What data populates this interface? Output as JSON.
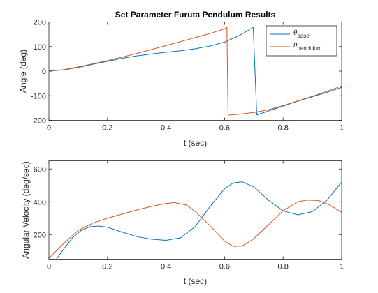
{
  "figure": {
    "background": "#ffffff"
  },
  "chart_data": [
    {
      "type": "line",
      "title": "Set Parameter Furuta Pendulum Results",
      "xlabel": "t (sec)",
      "ylabel": "Angle (deg)",
      "xlim": [
        0,
        1
      ],
      "ylim": [
        -200,
        200
      ],
      "xticks": [
        0,
        0.2,
        0.4,
        0.6,
        0.8,
        1
      ],
      "xtick_labels": [
        "0",
        "0.2",
        "0.4",
        "0.6",
        "0.8",
        "1"
      ],
      "yticks": [
        -200,
        -100,
        0,
        100,
        200
      ],
      "ytick_labels": [
        "-200",
        "-100",
        "0",
        "100",
        "200"
      ],
      "grid": false,
      "legend": {
        "placement": "top-right",
        "entries": [
          {
            "symbol": "θ",
            "subscript": "base",
            "color": "#0072BD"
          },
          {
            "symbol": "θ",
            "subscript": "pendulum",
            "color": "#D95319"
          }
        ]
      },
      "series": [
        {
          "color": "#0072BD",
          "x": [
            0,
            0.05,
            0.1,
            0.15,
            0.2,
            0.25,
            0.3,
            0.35,
            0.4,
            0.45,
            0.5,
            0.55,
            0.6,
            0.65,
            0.698,
            0.71,
            0.75,
            0.8,
            0.85,
            0.9,
            0.95,
            1.0
          ],
          "y": [
            0,
            5,
            15,
            28,
            40,
            52,
            62,
            70,
            77,
            83,
            91,
            102,
            118,
            145,
            178,
            -178,
            -162,
            -142,
            -122,
            -104,
            -86,
            -66
          ]
        },
        {
          "color": "#D95319",
          "x": [
            0,
            0.05,
            0.1,
            0.15,
            0.2,
            0.25,
            0.3,
            0.35,
            0.4,
            0.45,
            0.5,
            0.55,
            0.6,
            0.608,
            0.612,
            0.65,
            0.7,
            0.75,
            0.8,
            0.85,
            0.9,
            0.95,
            1.0
          ],
          "y": [
            0,
            6,
            17,
            30,
            43,
            57,
            72,
            88,
            104,
            120,
            137,
            153,
            172,
            179,
            -179,
            -175,
            -168,
            -157,
            -140,
            -121,
            -102,
            -82,
            -60
          ]
        }
      ]
    },
    {
      "type": "line",
      "title": "",
      "xlabel": "t (sec)",
      "ylabel": "Angular Velocity (deg/sec)",
      "xlim": [
        0,
        1
      ],
      "ylim": [
        50,
        650
      ],
      "xticks": [
        0,
        0.2,
        0.4,
        0.6,
        0.8,
        1
      ],
      "xtick_labels": [
        "0",
        "0.2",
        "0.4",
        "0.6",
        "0.8",
        "1"
      ],
      "yticks": [
        200,
        400,
        600
      ],
      "ytick_labels": [
        "200",
        "400",
        "600"
      ],
      "grid": false,
      "series": [
        {
          "color": "#0072BD",
          "x": [
            0.025,
            0.05,
            0.08,
            0.11,
            0.14,
            0.17,
            0.2,
            0.25,
            0.3,
            0.35,
            0.4,
            0.45,
            0.5,
            0.55,
            0.6,
            0.63,
            0.66,
            0.7,
            0.75,
            0.8,
            0.85,
            0.9,
            0.95,
            1.0
          ],
          "y": [
            50,
            110,
            180,
            225,
            248,
            252,
            245,
            215,
            188,
            172,
            165,
            180,
            250,
            370,
            480,
            515,
            522,
            490,
            410,
            345,
            320,
            340,
            410,
            520
          ]
        },
        {
          "color": "#D95319",
          "x": [
            0,
            0.05,
            0.1,
            0.15,
            0.2,
            0.25,
            0.3,
            0.35,
            0.4,
            0.43,
            0.47,
            0.5,
            0.55,
            0.6,
            0.63,
            0.66,
            0.7,
            0.75,
            0.8,
            0.85,
            0.88,
            0.92,
            0.96,
            1.0
          ],
          "y": [
            55,
            145,
            225,
            270,
            300,
            325,
            350,
            372,
            390,
            395,
            380,
            340,
            255,
            160,
            128,
            130,
            175,
            260,
            345,
            400,
            410,
            408,
            380,
            335
          ]
        }
      ]
    }
  ]
}
